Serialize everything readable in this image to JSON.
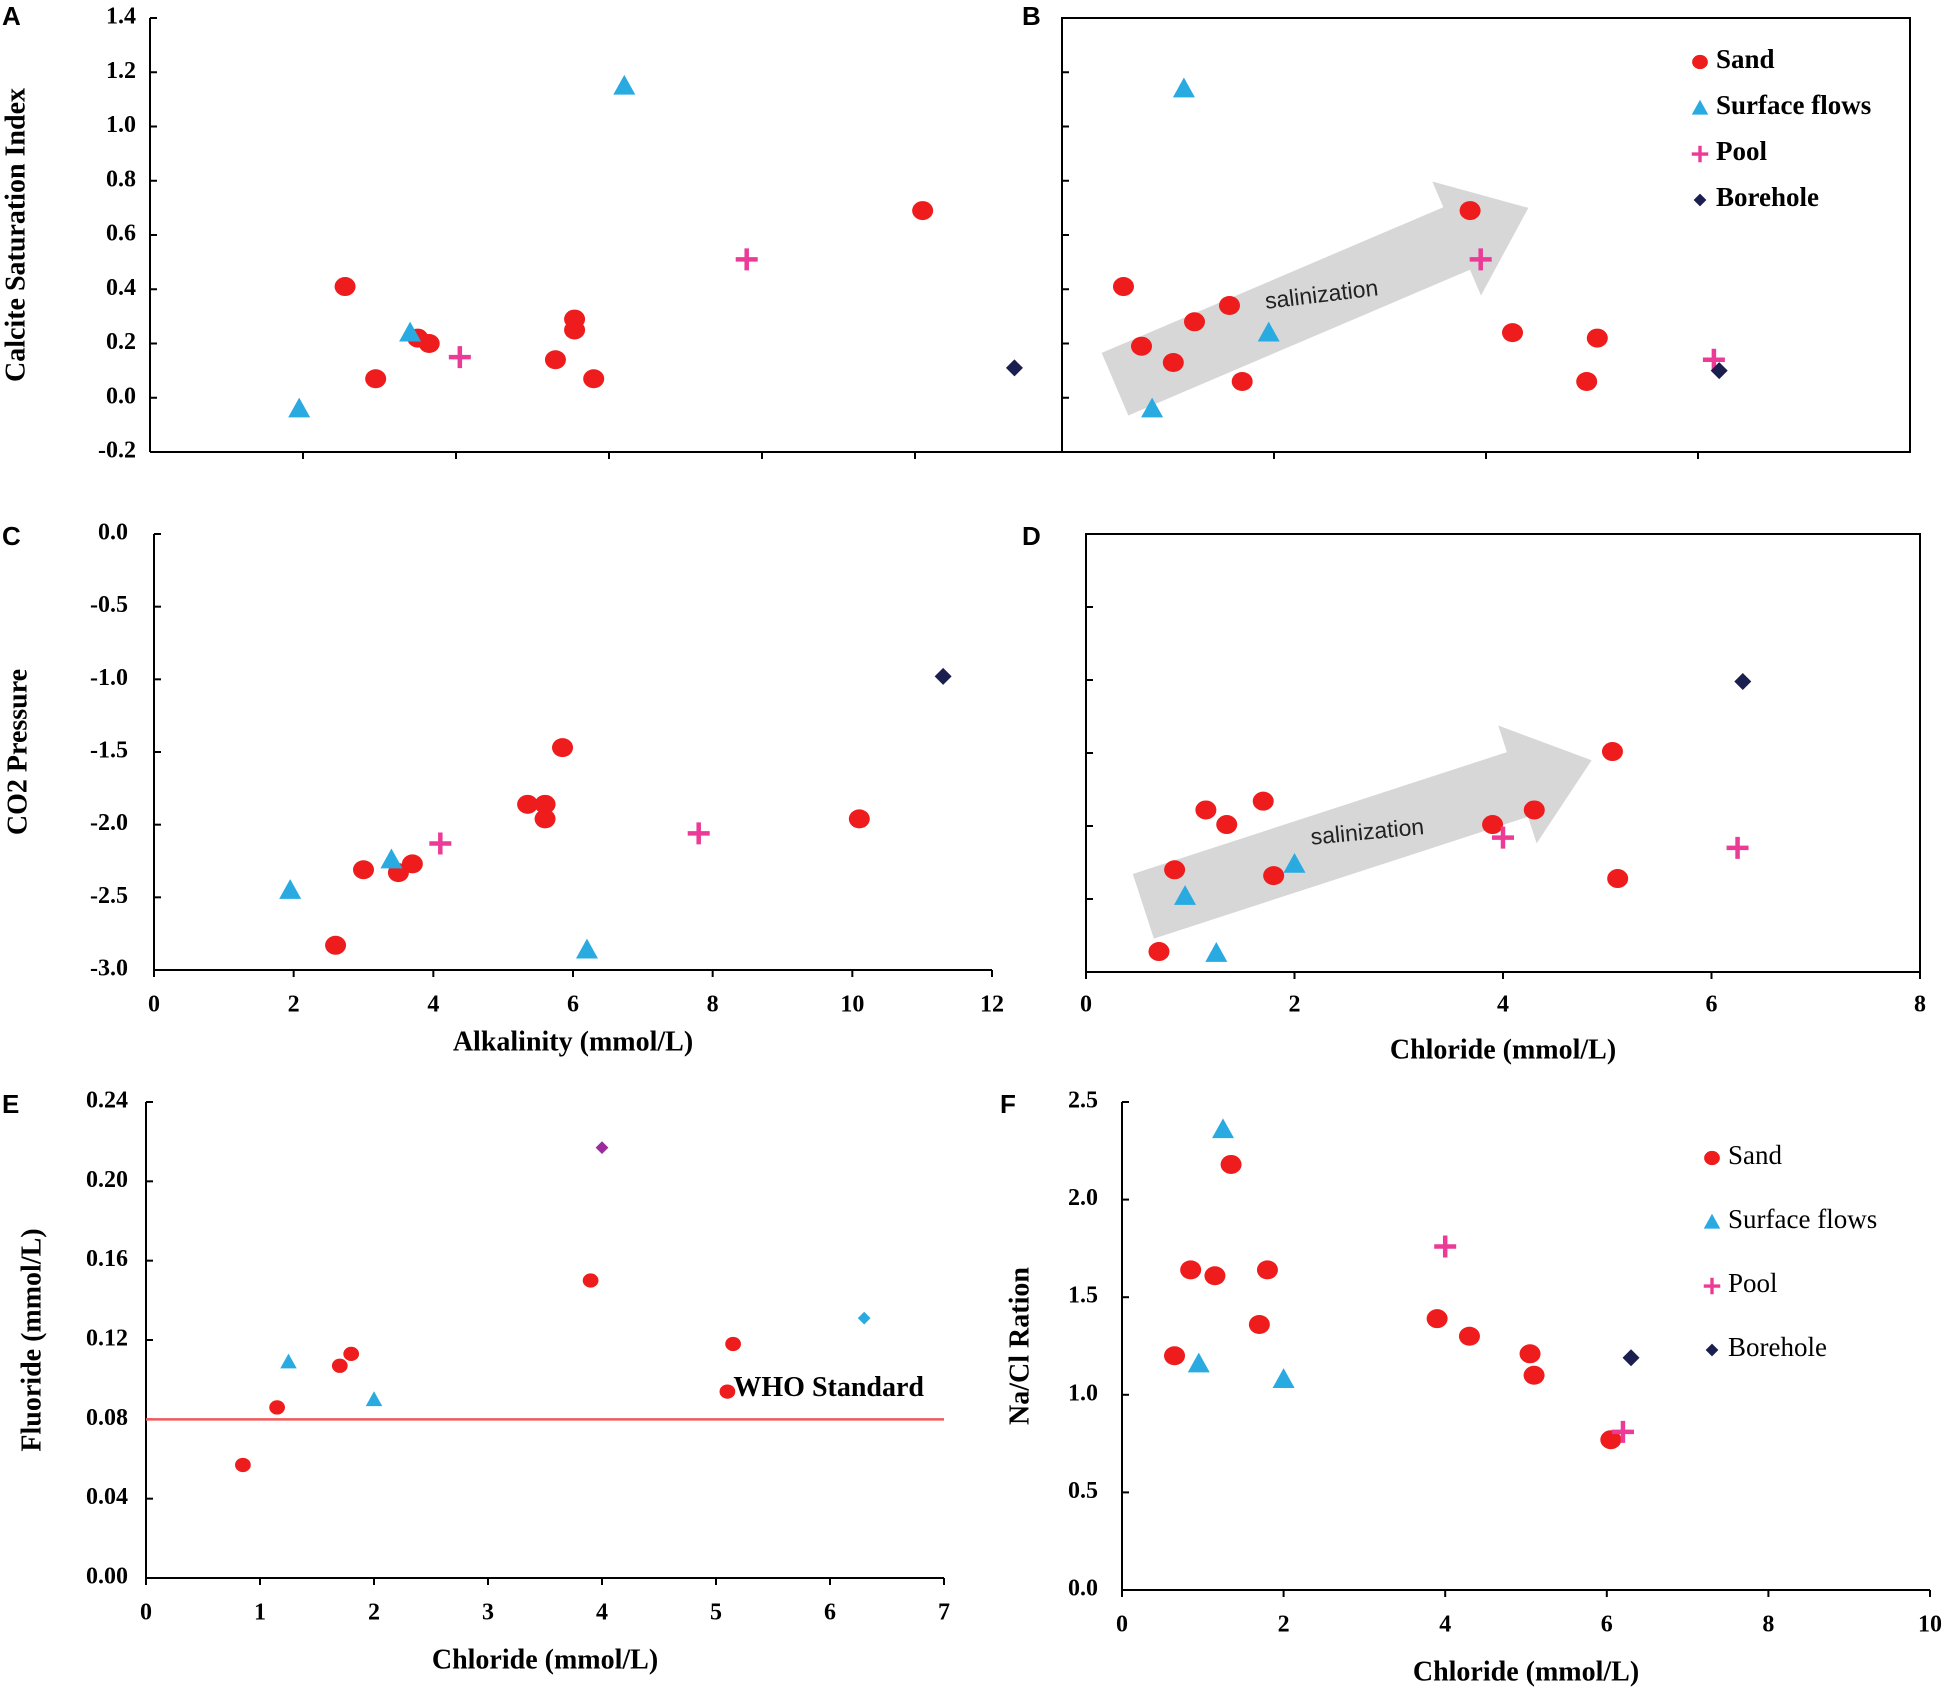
{
  "figure": {
    "colors": {
      "sand": "#ee1c1c",
      "surface": "#29abe2",
      "pool": "#ec3b97",
      "borehole": "#1b1f4f",
      "purple": "#9b2a9c",
      "who_line": "#f05a5a",
      "arrow": "#d0d0d0",
      "axis": "#000000"
    }
  },
  "chart_data": [
    {
      "panel": "A",
      "type": "scatter",
      "xlabel": "",
      "ylabel": "Calcite Saturation Index",
      "xlim": [
        0,
        12
      ],
      "ylim": [
        -0.2,
        1.4
      ],
      "xticks": [
        2,
        4,
        6,
        8,
        10
      ],
      "xtick_labels": [],
      "yticks": [
        -0.2,
        0.0,
        0.2,
        0.4,
        0.6,
        0.8,
        1.0,
        1.2,
        1.4
      ],
      "ytick_labels": [
        "-0.2",
        "0.0",
        "0.2",
        "0.4",
        "0.6",
        "0.8",
        "1.0",
        "1.2",
        "1.4"
      ],
      "series": [
        {
          "name": "Sand",
          "marker": "circle",
          "color": "sand",
          "points": [
            [
              2.55,
              0.41
            ],
            [
              2.95,
              0.07
            ],
            [
              3.5,
              0.22
            ],
            [
              3.65,
              0.2
            ],
            [
              5.3,
              0.14
            ],
            [
              5.55,
              0.29
            ],
            [
              5.55,
              0.25
            ],
            [
              5.8,
              0.07
            ],
            [
              10.1,
              0.69
            ]
          ]
        },
        {
          "name": "Surface flows",
          "marker": "triangle",
          "color": "surface",
          "points": [
            [
              1.95,
              -0.04
            ],
            [
              3.4,
              0.24
            ],
            [
              6.2,
              1.15
            ]
          ]
        },
        {
          "name": "Pool",
          "marker": "plus",
          "color": "pool",
          "points": [
            [
              4.05,
              0.15
            ],
            [
              7.8,
              0.51
            ]
          ]
        },
        {
          "name": "Borehole",
          "marker": "diamond",
          "color": "borehole",
          "points": [
            [
              11.3,
              0.11
            ]
          ]
        }
      ]
    },
    {
      "panel": "B",
      "type": "scatter",
      "xlabel": "",
      "ylabel": "",
      "xlim": [
        0,
        8
      ],
      "ylim": [
        -0.2,
        1.4
      ],
      "xticks": [
        2,
        4,
        6
      ],
      "xtick_labels": [],
      "yticks": [
        -0.2,
        0.0,
        0.2,
        0.4,
        0.6,
        0.8,
        1.0,
        1.2,
        1.4
      ],
      "ytick_labels": [],
      "annotation": {
        "text": "salinization",
        "from": [
          0.5,
          0.05
        ],
        "to": [
          4.4,
          0.7
        ]
      },
      "legend": {
        "placement": "top-right",
        "entries": [
          "Sand",
          "Surface flows",
          "Pool",
          "Borehole"
        ]
      },
      "series": [
        {
          "name": "Sand",
          "marker": "circle",
          "color": "sand",
          "points": [
            [
              0.58,
              0.41
            ],
            [
              0.75,
              0.19
            ],
            [
              1.05,
              0.13
            ],
            [
              1.25,
              0.28
            ],
            [
              1.58,
              0.34
            ],
            [
              1.7,
              0.06
            ],
            [
              3.85,
              0.69
            ],
            [
              4.25,
              0.24
            ],
            [
              5.05,
              0.22
            ],
            [
              4.95,
              0.06
            ]
          ]
        },
        {
          "name": "Surface flows",
          "marker": "triangle",
          "color": "surface",
          "points": [
            [
              0.85,
              -0.04
            ],
            [
              1.15,
              1.14
            ],
            [
              1.95,
              0.24
            ]
          ]
        },
        {
          "name": "Pool",
          "marker": "plus",
          "color": "pool",
          "points": [
            [
              3.95,
              0.51
            ],
            [
              6.15,
              0.14
            ]
          ]
        },
        {
          "name": "Borehole",
          "marker": "diamond",
          "color": "borehole",
          "points": [
            [
              6.2,
              0.1
            ]
          ]
        }
      ]
    },
    {
      "panel": "C",
      "type": "scatter",
      "xlabel": "Alkalinity (mmol/L)",
      "ylabel": "CO2 Pressure",
      "xlim": [
        0,
        12
      ],
      "ylim": [
        -3.0,
        0.0
      ],
      "xticks": [
        0,
        2,
        4,
        6,
        8,
        10,
        12
      ],
      "xtick_labels": [
        "0",
        "2",
        "4",
        "6",
        "8",
        "10",
        "12"
      ],
      "yticks": [
        -3.0,
        -2.5,
        -2.0,
        -1.5,
        -1.0,
        -0.5,
        0.0
      ],
      "ytick_labels": [
        "-3.0",
        "-2.5",
        "-2.0",
        "-1.5",
        "-1.0",
        "-0.5",
        "0.0"
      ],
      "series": [
        {
          "name": "Sand",
          "marker": "circle",
          "color": "sand",
          "points": [
            [
              2.6,
              -2.83
            ],
            [
              3.0,
              -2.31
            ],
            [
              3.5,
              -2.33
            ],
            [
              3.7,
              -2.27
            ],
            [
              5.35,
              -1.86
            ],
            [
              5.6,
              -1.86
            ],
            [
              5.6,
              -1.96
            ],
            [
              5.85,
              -1.47
            ],
            [
              10.1,
              -1.96
            ]
          ]
        },
        {
          "name": "Surface flows",
          "marker": "triangle",
          "color": "surface",
          "points": [
            [
              1.95,
              -2.45
            ],
            [
              3.4,
              -2.24
            ],
            [
              6.2,
              -2.86
            ]
          ]
        },
        {
          "name": "Pool",
          "marker": "plus",
          "color": "pool",
          "points": [
            [
              4.1,
              -2.13
            ],
            [
              7.8,
              -2.06
            ]
          ]
        },
        {
          "name": "Borehole",
          "marker": "diamond",
          "color": "borehole",
          "points": [
            [
              11.3,
              -0.98
            ]
          ]
        }
      ]
    },
    {
      "panel": "D",
      "type": "scatter",
      "xlabel": "Chloride (mmol/L)",
      "ylabel": "",
      "xlim": [
        0,
        8
      ],
      "ylim": [
        -3.0,
        0.0
      ],
      "xticks": [
        0,
        2,
        4,
        6,
        8
      ],
      "xtick_labels": [
        "0",
        "2",
        "4",
        "6",
        "8"
      ],
      "yticks": [
        -3.0,
        -2.5,
        -2.0,
        -1.5,
        -1.0,
        -0.5,
        0.0
      ],
      "ytick_labels": [],
      "annotation": {
        "text": "salinization",
        "from": [
          0.55,
          -2.55
        ],
        "to": [
          4.85,
          -1.55
        ]
      },
      "series": [
        {
          "name": "Sand",
          "marker": "circle",
          "color": "sand",
          "points": [
            [
              0.7,
              -2.86
            ],
            [
              0.85,
              -2.3
            ],
            [
              1.15,
              -1.89
            ],
            [
              1.35,
              -1.99
            ],
            [
              1.7,
              -1.83
            ],
            [
              1.8,
              -2.34
            ],
            [
              3.9,
              -1.99
            ],
            [
              4.3,
              -1.89
            ],
            [
              5.05,
              -1.49
            ],
            [
              5.1,
              -2.36
            ]
          ]
        },
        {
          "name": "Surface flows",
          "marker": "triangle",
          "color": "surface",
          "points": [
            [
              0.95,
              -2.48
            ],
            [
              1.25,
              -2.87
            ],
            [
              2.0,
              -2.26
            ]
          ]
        },
        {
          "name": "Pool",
          "marker": "plus",
          "color": "pool",
          "points": [
            [
              4.0,
              -2.08
            ],
            [
              6.25,
              -2.15
            ]
          ]
        },
        {
          "name": "Borehole",
          "marker": "diamond",
          "color": "borehole",
          "points": [
            [
              6.3,
              -1.01
            ]
          ]
        }
      ]
    },
    {
      "panel": "E",
      "type": "scatter",
      "xlabel": "Chloride (mmol/L)",
      "ylabel": "Fluoride (mmol/L)",
      "xlim": [
        0,
        7
      ],
      "ylim": [
        0.0,
        0.24
      ],
      "xticks": [
        0,
        1,
        2,
        3,
        4,
        5,
        6,
        7
      ],
      "xtick_labels": [
        "0",
        "1",
        "2",
        "3",
        "4",
        "5",
        "6",
        "7"
      ],
      "yticks": [
        0.0,
        0.04,
        0.08,
        0.12,
        0.16,
        0.2,
        0.24
      ],
      "ytick_labels": [
        "0.00",
        "0.04",
        "0.08",
        "0.12",
        "0.16",
        "0.20",
        "0.24"
      ],
      "reference_line": {
        "label": "WHO Standard",
        "y": 0.08
      },
      "series": [
        {
          "name": "Sand",
          "marker": "circle",
          "color": "sand",
          "points": [
            [
              0.85,
              0.057
            ],
            [
              1.15,
              0.086
            ],
            [
              1.7,
              0.107
            ],
            [
              1.8,
              0.113
            ],
            [
              3.9,
              0.15
            ],
            [
              5.15,
              0.118
            ],
            [
              5.1,
              0.094
            ]
          ]
        },
        {
          "name": "Surface flows",
          "marker": "triangle",
          "color": "surface",
          "points": [
            [
              1.25,
              0.109
            ],
            [
              2.0,
              0.09
            ]
          ]
        },
        {
          "name": "Pool",
          "marker": "diamond",
          "color": "purple",
          "points": [
            [
              4.0,
              0.217
            ]
          ]
        },
        {
          "name": "Borehole",
          "marker": "diamond",
          "color": "surface",
          "points": [
            [
              6.3,
              0.131
            ]
          ]
        }
      ]
    },
    {
      "panel": "F",
      "type": "scatter",
      "xlabel": "Chloride (mmol/L)",
      "ylabel": "Na/Cl Ration",
      "xlim": [
        0,
        10
      ],
      "ylim": [
        0.0,
        2.5
      ],
      "xticks": [
        0,
        2,
        4,
        6,
        8,
        10
      ],
      "xtick_labels": [
        "0",
        "2",
        "4",
        "6",
        "8",
        "10"
      ],
      "yticks": [
        0.0,
        0.5,
        1.0,
        1.5,
        2.0,
        2.5
      ],
      "ytick_labels": [
        "0.0",
        "0.5",
        "1.0",
        "1.5",
        "2.0",
        "2.5"
      ],
      "legend": {
        "placement": "top-right",
        "entries": [
          "Sand",
          "Surface flows",
          "Pool",
          "Borehole"
        ]
      },
      "series": [
        {
          "name": "Sand",
          "marker": "circle",
          "color": "sand",
          "points": [
            [
              0.65,
              1.2
            ],
            [
              0.85,
              1.64
            ],
            [
              1.15,
              1.61
            ],
            [
              1.35,
              2.18
            ],
            [
              1.7,
              1.36
            ],
            [
              1.8,
              1.64
            ],
            [
              3.9,
              1.39
            ],
            [
              4.3,
              1.3
            ],
            [
              5.05,
              1.21
            ],
            [
              5.1,
              1.1
            ],
            [
              6.05,
              0.77
            ]
          ]
        },
        {
          "name": "Surface flows",
          "marker": "triangle",
          "color": "surface",
          "points": [
            [
              0.95,
              1.16
            ],
            [
              1.25,
              2.36
            ],
            [
              2.0,
              1.08
            ]
          ]
        },
        {
          "name": "Pool",
          "marker": "plus",
          "color": "pool",
          "points": [
            [
              4.0,
              1.76
            ],
            [
              6.2,
              0.81
            ]
          ]
        },
        {
          "name": "Borehole",
          "marker": "diamond",
          "color": "borehole",
          "points": [
            [
              6.3,
              1.19
            ]
          ]
        }
      ]
    }
  ]
}
